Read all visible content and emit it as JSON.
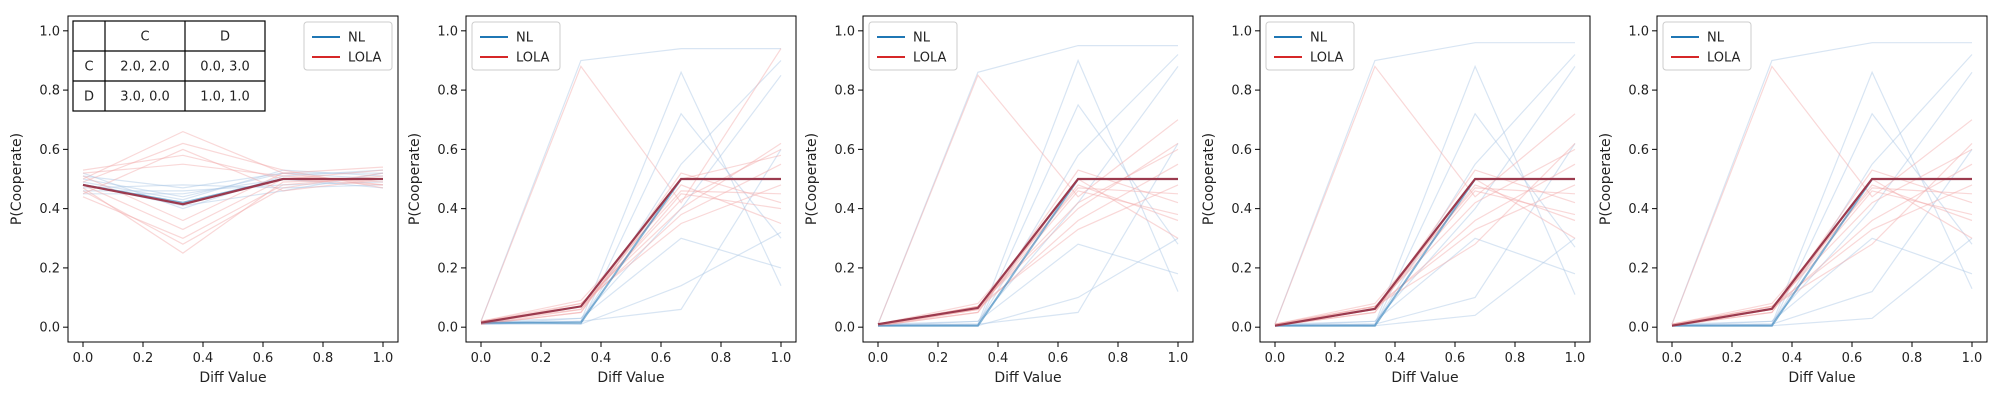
{
  "colors": {
    "nl": "#1f77b4",
    "lola": "#d62728",
    "combined": "#9b3a4e",
    "nl_faint": "#a9c6e4",
    "lola_faint": "#f2a9a9"
  },
  "chart_data": [
    {
      "type": "line",
      "xlabel": "Diff Value",
      "ylabel": "P(Cooperate)",
      "xlim": [
        0,
        1
      ],
      "ylim": [
        -0.05,
        1.05
      ],
      "xticks": [
        "0.0",
        "0.2",
        "0.4",
        "0.6",
        "0.8",
        "1.0"
      ],
      "yticks": [
        "0.0",
        "0.2",
        "0.4",
        "0.6",
        "0.8",
        "1.0"
      ],
      "legend": {
        "position": "top-right",
        "entries": [
          {
            "name": "NL",
            "color_key": "nl"
          },
          {
            "name": "LOLA",
            "color_key": "lola"
          }
        ]
      },
      "payoff_table": {
        "header": [
          "",
          "C",
          "D"
        ],
        "rows": [
          [
            "C",
            "2.0, 2.0",
            "0.0, 3.0"
          ],
          [
            "D",
            "3.0, 0.0",
            "1.0, 1.0"
          ]
        ]
      },
      "x": [
        0,
        0.333,
        0.667,
        1.0
      ],
      "series": [
        {
          "name": "NL",
          "values": [
            0.48,
            0.42,
            0.5,
            0.5
          ]
        },
        {
          "name": "LOLA",
          "values": [
            0.48,
            0.415,
            0.5,
            0.5
          ]
        }
      ],
      "faint_runs": {
        "nl": [
          [
            0.5,
            0.44,
            0.52,
            0.52
          ],
          [
            0.46,
            0.46,
            0.48,
            0.49
          ],
          [
            0.52,
            0.4,
            0.51,
            0.53
          ],
          [
            0.47,
            0.48,
            0.47,
            0.48
          ],
          [
            0.49,
            0.43,
            0.53,
            0.51
          ],
          [
            0.45,
            0.45,
            0.5,
            0.47
          ],
          [
            0.51,
            0.47,
            0.52,
            0.5
          ],
          [
            0.48,
            0.41,
            0.46,
            0.52
          ]
        ],
        "lola": [
          [
            0.5,
            0.66,
            0.52,
            0.54
          ],
          [
            0.47,
            0.25,
            0.49,
            0.5
          ],
          [
            0.53,
            0.58,
            0.5,
            0.48
          ],
          [
            0.44,
            0.3,
            0.48,
            0.51
          ],
          [
            0.49,
            0.62,
            0.53,
            0.47
          ],
          [
            0.46,
            0.28,
            0.47,
            0.52
          ],
          [
            0.52,
            0.55,
            0.51,
            0.49
          ],
          [
            0.48,
            0.33,
            0.5,
            0.53
          ],
          [
            0.45,
            0.6,
            0.46,
            0.5
          ],
          [
            0.51,
            0.36,
            0.52,
            0.48
          ]
        ]
      }
    },
    {
      "type": "line",
      "xlabel": "Diff Value",
      "ylabel": "P(Cooperate)",
      "xlim": [
        0,
        1
      ],
      "ylim": [
        -0.05,
        1.05
      ],
      "xticks": [
        "0.0",
        "0.2",
        "0.4",
        "0.6",
        "0.8",
        "1.0"
      ],
      "yticks": [
        "0.0",
        "0.2",
        "0.4",
        "0.6",
        "0.8",
        "1.0"
      ],
      "legend": {
        "position": "top-left",
        "entries": [
          {
            "name": "NL",
            "color_key": "nl"
          },
          {
            "name": "LOLA",
            "color_key": "lola"
          }
        ]
      },
      "x": [
        0,
        0.333,
        0.667,
        1.0
      ],
      "series": [
        {
          "name": "NL",
          "values": [
            0.015,
            0.015,
            0.5,
            0.5
          ]
        },
        {
          "name": "LOLA",
          "values": [
            0.015,
            0.07,
            0.5,
            0.5
          ]
        }
      ],
      "faint_runs": {
        "nl": [
          [
            0.02,
            0.9,
            0.94,
            0.94
          ],
          [
            0.01,
            0.02,
            0.86,
            0.14
          ],
          [
            0.01,
            0.01,
            0.14,
            0.32
          ],
          [
            0.02,
            0.03,
            0.4,
            0.85
          ],
          [
            0.01,
            0.02,
            0.06,
            0.6
          ],
          [
            0.02,
            0.01,
            0.72,
            0.3
          ],
          [
            0.01,
            0.03,
            0.3,
            0.2
          ],
          [
            0.02,
            0.02,
            0.55,
            0.9
          ]
        ],
        "lola": [
          [
            0.02,
            0.88,
            0.42,
            0.94
          ],
          [
            0.01,
            0.08,
            0.4,
            0.62
          ],
          [
            0.02,
            0.06,
            0.45,
            0.4
          ],
          [
            0.01,
            0.07,
            0.38,
            0.55
          ],
          [
            0.02,
            0.09,
            0.46,
            0.45
          ],
          [
            0.01,
            0.05,
            0.5,
            0.58
          ],
          [
            0.02,
            0.08,
            0.35,
            0.48
          ],
          [
            0.01,
            0.06,
            0.48,
            0.35
          ],
          [
            0.02,
            0.07,
            0.43,
            0.6
          ],
          [
            0.01,
            0.05,
            0.52,
            0.42
          ]
        ]
      }
    },
    {
      "type": "line",
      "xlabel": "Diff Value",
      "ylabel": "P(Cooperate)",
      "xlim": [
        0,
        1
      ],
      "ylim": [
        -0.05,
        1.05
      ],
      "xticks": [
        "0.0",
        "0.2",
        "0.4",
        "0.6",
        "0.8",
        "1.0"
      ],
      "yticks": [
        "0.0",
        "0.2",
        "0.4",
        "0.6",
        "0.8",
        "1.0"
      ],
      "legend": {
        "position": "top-left",
        "entries": [
          {
            "name": "NL",
            "color_key": "nl"
          },
          {
            "name": "LOLA",
            "color_key": "lola"
          }
        ]
      },
      "x": [
        0,
        0.333,
        0.667,
        1.0
      ],
      "series": [
        {
          "name": "NL",
          "values": [
            0.005,
            0.005,
            0.5,
            0.5
          ]
        },
        {
          "name": "LOLA",
          "values": [
            0.01,
            0.065,
            0.5,
            0.5
          ]
        }
      ],
      "faint_runs": {
        "nl": [
          [
            0.01,
            0.86,
            0.95,
            0.95
          ],
          [
            0.005,
            0.01,
            0.9,
            0.12
          ],
          [
            0.005,
            0.005,
            0.1,
            0.3
          ],
          [
            0.01,
            0.02,
            0.42,
            0.88
          ],
          [
            0.005,
            0.01,
            0.05,
            0.62
          ],
          [
            0.01,
            0.005,
            0.75,
            0.28
          ],
          [
            0.005,
            0.02,
            0.28,
            0.18
          ],
          [
            0.01,
            0.01,
            0.58,
            0.92
          ]
        ],
        "lola": [
          [
            0.01,
            0.85,
            0.44,
            0.7
          ],
          [
            0.005,
            0.07,
            0.4,
            0.62
          ],
          [
            0.01,
            0.06,
            0.46,
            0.38
          ],
          [
            0.005,
            0.06,
            0.36,
            0.55
          ],
          [
            0.01,
            0.08,
            0.47,
            0.45
          ],
          [
            0.005,
            0.05,
            0.5,
            0.3
          ],
          [
            0.01,
            0.07,
            0.33,
            0.48
          ],
          [
            0.005,
            0.06,
            0.48,
            0.36
          ],
          [
            0.01,
            0.07,
            0.42,
            0.6
          ],
          [
            0.005,
            0.05,
            0.53,
            0.42
          ]
        ]
      }
    },
    {
      "type": "line",
      "xlabel": "Diff Value",
      "ylabel": "P(Cooperate)",
      "xlim": [
        0,
        1
      ],
      "ylim": [
        -0.05,
        1.05
      ],
      "xticks": [
        "0.0",
        "0.2",
        "0.4",
        "0.6",
        "0.8",
        "1.0"
      ],
      "yticks": [
        "0.0",
        "0.2",
        "0.4",
        "0.6",
        "0.8",
        "1.0"
      ],
      "legend": {
        "position": "top-left",
        "entries": [
          {
            "name": "NL",
            "color_key": "nl"
          },
          {
            "name": "LOLA",
            "color_key": "lola"
          }
        ]
      },
      "x": [
        0,
        0.333,
        0.667,
        1.0
      ],
      "series": [
        {
          "name": "NL",
          "values": [
            0.005,
            0.005,
            0.5,
            0.5
          ]
        },
        {
          "name": "LOLA",
          "values": [
            0.005,
            0.062,
            0.5,
            0.5
          ]
        }
      ],
      "faint_runs": {
        "nl": [
          [
            0.01,
            0.9,
            0.96,
            0.96
          ],
          [
            0.005,
            0.01,
            0.88,
            0.11
          ],
          [
            0.005,
            0.005,
            0.04,
            0.3
          ],
          [
            0.01,
            0.02,
            0.4,
            0.88
          ],
          [
            0.005,
            0.01,
            0.1,
            0.62
          ],
          [
            0.01,
            0.005,
            0.72,
            0.27
          ],
          [
            0.005,
            0.02,
            0.3,
            0.18
          ],
          [
            0.01,
            0.01,
            0.55,
            0.92
          ]
        ],
        "lola": [
          [
            0.01,
            0.88,
            0.44,
            0.72
          ],
          [
            0.005,
            0.07,
            0.28,
            0.62
          ],
          [
            0.01,
            0.06,
            0.46,
            0.38
          ],
          [
            0.005,
            0.06,
            0.36,
            0.55
          ],
          [
            0.01,
            0.08,
            0.47,
            0.45
          ],
          [
            0.005,
            0.05,
            0.5,
            0.3
          ],
          [
            0.01,
            0.07,
            0.33,
            0.48
          ],
          [
            0.005,
            0.06,
            0.48,
            0.36
          ],
          [
            0.01,
            0.07,
            0.42,
            0.6
          ],
          [
            0.005,
            0.05,
            0.53,
            0.42
          ]
        ]
      }
    },
    {
      "type": "line",
      "xlabel": "Diff Value",
      "ylabel": "P(Cooperate)",
      "xlim": [
        0,
        1
      ],
      "ylim": [
        -0.05,
        1.05
      ],
      "xticks": [
        "0.0",
        "0.2",
        "0.4",
        "0.6",
        "0.8",
        "1.0"
      ],
      "yticks": [
        "0.0",
        "0.2",
        "0.4",
        "0.6",
        "0.8",
        "1.0"
      ],
      "legend": {
        "position": "top-left",
        "entries": [
          {
            "name": "NL",
            "color_key": "nl"
          },
          {
            "name": "LOLA",
            "color_key": "lola"
          }
        ]
      },
      "x": [
        0,
        0.333,
        0.667,
        1.0
      ],
      "series": [
        {
          "name": "NL",
          "values": [
            0.005,
            0.005,
            0.5,
            0.5
          ]
        },
        {
          "name": "LOLA",
          "values": [
            0.005,
            0.062,
            0.5,
            0.5
          ]
        }
      ],
      "faint_runs": {
        "nl": [
          [
            0.01,
            0.9,
            0.96,
            0.96
          ],
          [
            0.005,
            0.01,
            0.86,
            0.13
          ],
          [
            0.005,
            0.005,
            0.03,
            0.3
          ],
          [
            0.01,
            0.02,
            0.4,
            0.86
          ],
          [
            0.005,
            0.01,
            0.12,
            0.6
          ],
          [
            0.01,
            0.005,
            0.72,
            0.28
          ],
          [
            0.005,
            0.02,
            0.3,
            0.18
          ],
          [
            0.01,
            0.01,
            0.55,
            0.92
          ]
        ],
        "lola": [
          [
            0.01,
            0.88,
            0.44,
            0.7
          ],
          [
            0.005,
            0.07,
            0.28,
            0.62
          ],
          [
            0.01,
            0.06,
            0.46,
            0.38
          ],
          [
            0.005,
            0.06,
            0.36,
            0.55
          ],
          [
            0.01,
            0.08,
            0.47,
            0.45
          ],
          [
            0.005,
            0.05,
            0.5,
            0.3
          ],
          [
            0.01,
            0.07,
            0.33,
            0.48
          ],
          [
            0.005,
            0.06,
            0.48,
            0.36
          ],
          [
            0.01,
            0.07,
            0.42,
            0.6
          ],
          [
            0.005,
            0.05,
            0.53,
            0.42
          ]
        ]
      }
    }
  ]
}
